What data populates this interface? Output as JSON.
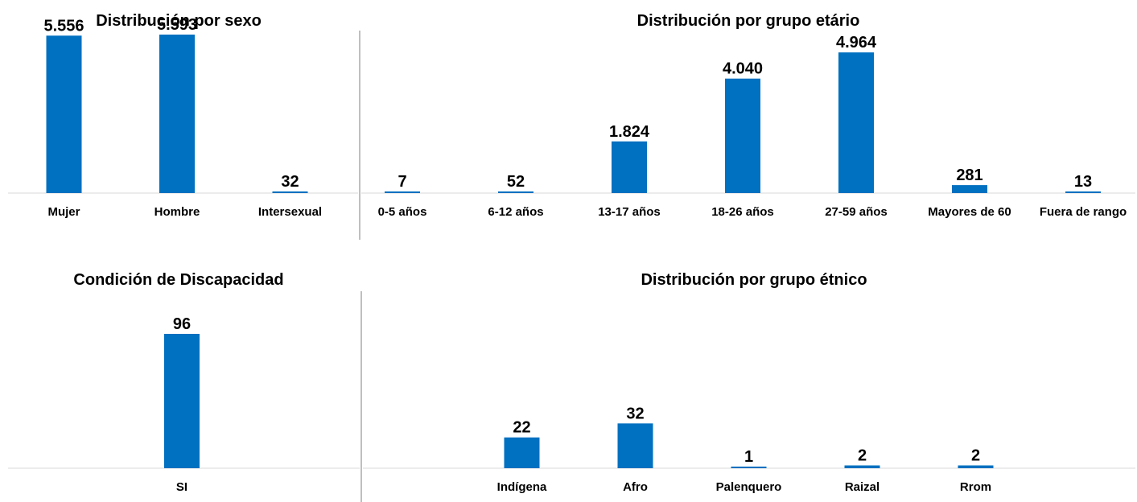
{
  "bar_color": "#0070C0",
  "baseline_color": "#D9D9D9",
  "divider_color": "#7F7F7F",
  "chart_data": [
    {
      "type": "bar",
      "title": "Distribución por sexo",
      "categories": [
        "Mujer",
        "Hombre",
        "Intersexual"
      ],
      "values": [
        5556,
        5593,
        32
      ],
      "value_labels": [
        "5.556",
        "5.593",
        "32"
      ],
      "xlabel": "",
      "ylabel": "",
      "ylim": [
        0,
        5593
      ],
      "grid": false
    },
    {
      "type": "bar",
      "title": "Distribución por grupo etário",
      "categories": [
        "0-5 años",
        "6-12 años",
        "13-17 años",
        "18-26 años",
        "27-59 años",
        "Mayores de 60",
        "Fuera de rango"
      ],
      "values": [
        7,
        52,
        1824,
        4040,
        4964,
        281,
        13
      ],
      "value_labels": [
        "7",
        "52",
        "1.824",
        "4.040",
        "4.964",
        "281",
        "13"
      ],
      "xlabel": "",
      "ylabel": "",
      "ylim": [
        0,
        5593
      ],
      "grid": false
    },
    {
      "type": "bar",
      "title": "Condición de Discapacidad",
      "categories": [
        "SI"
      ],
      "values": [
        96
      ],
      "value_labels": [
        "96"
      ],
      "xlabel": "",
      "ylabel": "",
      "ylim": [
        0,
        96
      ],
      "grid": false
    },
    {
      "type": "bar",
      "title": "Distribución por grupo étnico",
      "categories": [
        "Indígena",
        "Afro",
        "Palenquero",
        "Raizal",
        "Rrom"
      ],
      "values": [
        22,
        32,
        1,
        2,
        2
      ],
      "value_labels": [
        "22",
        "32",
        "1",
        "2",
        "2"
      ],
      "xlabel": "",
      "ylabel": "",
      "ylim": [
        0,
        96
      ],
      "grid": false
    }
  ]
}
